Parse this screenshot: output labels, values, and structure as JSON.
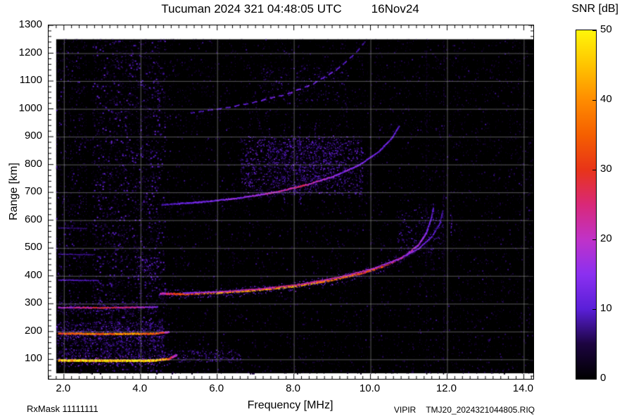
{
  "header": {
    "title": "Tucuman 2024 321 04:48:05 UTC",
    "date": "16Nov24"
  },
  "footer": {
    "rxmask": "RxMask 11111111",
    "instrument": "VIPIR",
    "filename": "TMJ20_2024321044805.RIQ"
  },
  "chart_data": {
    "type": "heatmap",
    "subtype": "ionogram",
    "title": "Tucuman 2024 321 04:48:05 UTC",
    "date_label": "16Nov24",
    "xlabel": "Frequency [MHz]",
    "ylabel": "Range [km]",
    "xlim": [
      1.6,
      14.25
    ],
    "ylim": [
      30,
      1300
    ],
    "x_ticks": [
      2.0,
      4.0,
      6.0,
      8.0,
      10.0,
      12.0,
      14.0
    ],
    "x_tick_labels": [
      "2.0",
      "4.0",
      "6.0",
      "8.0",
      "10.0",
      "12.0",
      "14.0"
    ],
    "y_ticks": [
      100,
      200,
      300,
      400,
      500,
      600,
      700,
      800,
      900,
      1000,
      1100,
      1200,
      1300
    ],
    "x_minor_step": 0.2,
    "y_minor_step": 20,
    "grid": true,
    "grid_color": "rgba(205,205,205,0.42)",
    "colorbar": {
      "label": "SNR [dB]",
      "min": 0,
      "max": 50,
      "ticks": [
        0,
        10,
        20,
        30,
        40,
        50
      ]
    },
    "colormap": [
      [
        0.0,
        "#000000"
      ],
      [
        0.1,
        "#1c0440"
      ],
      [
        0.2,
        "#5a1fd8"
      ],
      [
        0.3,
        "#8b30f0"
      ],
      [
        0.4,
        "#c032c8"
      ],
      [
        0.5,
        "#d92878"
      ],
      [
        0.6,
        "#e83418"
      ],
      [
        0.7,
        "#f55f00"
      ],
      [
        0.8,
        "#ff8c00"
      ],
      [
        0.9,
        "#ffc400"
      ],
      [
        1.0,
        "#fff60a"
      ]
    ],
    "data_region": {
      "freq": [
        1.8,
        14.25
      ],
      "range": [
        50,
        1250
      ]
    },
    "noise": {
      "seed": 1337,
      "cell": 2,
      "layers": [
        {
          "name": "background",
          "freq": [
            1.8,
            14.25
          ],
          "range": [
            50,
            1250
          ],
          "density": 0.2,
          "max_snr": 6
        },
        {
          "name": "noise-column",
          "freq": [
            2.75,
            4.65
          ],
          "range": [
            60,
            1250
          ],
          "density": 0.38,
          "max_snr": 13
        },
        {
          "name": "low-freq",
          "freq": [
            1.8,
            2.6
          ],
          "range": [
            60,
            1250
          ],
          "density": 0.25,
          "max_snr": 9
        },
        {
          "name": "mid-sparse",
          "freq": [
            4.65,
            14.2
          ],
          "range": [
            50,
            1250
          ],
          "density": 0.05,
          "max_snr": 8
        }
      ]
    },
    "clouds": [
      {
        "name": "es-band",
        "freq": [
          1.8,
          4.6
        ],
        "range": [
          148,
          238
        ],
        "count": 1500,
        "max_snr": 13
      },
      {
        "name": "e-fuzz",
        "freq": [
          1.8,
          4.9
        ],
        "range": [
          100,
          142
        ],
        "count": 700,
        "max_snr": 12
      },
      {
        "name": "e-tail-blobs",
        "freq": [
          4.95,
          6.6
        ],
        "range": [
          92,
          135
        ],
        "count": 300,
        "max_snr": 13
      },
      {
        "name": "es3-fuzz",
        "freq": [
          1.8,
          4.4
        ],
        "range": [
          262,
          308
        ],
        "count": 350,
        "max_snr": 10
      },
      {
        "name": "f-start-dots",
        "freq": [
          3.85,
          4.45
        ],
        "range": [
          390,
          470
        ],
        "count": 160,
        "max_snr": 15
      },
      {
        "name": "second-hop-cloud",
        "freq": [
          6.6,
          9.8
        ],
        "range": [
          690,
          905
        ],
        "count": 2200,
        "max_snr": 15
      },
      {
        "name": "second-hop-upper",
        "freq": [
          7.3,
          9.2
        ],
        "range": [
          740,
          880
        ],
        "count": 900,
        "max_snr": 13
      },
      {
        "name": "cusp-cloud",
        "freq": [
          10.7,
          11.9
        ],
        "range": [
          470,
          640
        ],
        "count": 420,
        "max_snr": 11
      },
      {
        "name": "third-hop-cloud",
        "freq": [
          7.1,
          9.4
        ],
        "range": [
          1030,
          1160
        ],
        "count": 420,
        "max_snr": 10
      }
    ],
    "rfi_stripes": [
      {
        "freq": 7.35,
        "range": [
          660,
          930
        ],
        "snr": 9,
        "width": 2
      },
      {
        "freq": 7.75,
        "range": [
          660,
          935
        ],
        "snr": 10,
        "width": 2
      },
      {
        "freq": 8.15,
        "range": [
          660,
          945
        ],
        "snr": 11,
        "width": 2.5
      },
      {
        "freq": 8.55,
        "range": [
          670,
          950
        ],
        "snr": 9,
        "width": 2
      },
      {
        "freq": 11.45,
        "range": [
          50,
          1250
        ],
        "snr": 5,
        "width": 1.5
      },
      {
        "freq": 11.9,
        "range": [
          50,
          1250
        ],
        "snr": 6,
        "width": 1.5
      },
      {
        "freq": 12.1,
        "range": [
          545,
          625
        ],
        "snr": 14,
        "width": 2.5
      },
      {
        "freq": 11.62,
        "range": [
          600,
          660
        ],
        "snr": 10,
        "width": 2
      }
    ],
    "traces": [
      {
        "name": "E-echo-1",
        "width": 3,
        "points": [
          [
            1.85,
            96
          ],
          [
            3.2,
            95
          ],
          [
            4.3,
            95
          ],
          [
            4.72,
            101
          ],
          [
            4.95,
            117
          ]
        ],
        "snr_points": [
          [
            1.85,
            44
          ],
          [
            2.5,
            47
          ],
          [
            4.2,
            48
          ],
          [
            4.6,
            40
          ],
          [
            4.8,
            26
          ],
          [
            4.95,
            15
          ]
        ]
      },
      {
        "name": "E-echo-2",
        "width": 2.4,
        "points": [
          [
            1.85,
            193
          ],
          [
            3.0,
            191
          ],
          [
            4.4,
            192
          ],
          [
            4.75,
            199
          ]
        ],
        "snr_points": [
          [
            1.85,
            30
          ],
          [
            2.6,
            36
          ],
          [
            3.8,
            37
          ],
          [
            4.5,
            30
          ],
          [
            4.75,
            16
          ]
        ]
      },
      {
        "name": "E-echo-3",
        "width": 1.8,
        "points": [
          [
            1.85,
            286
          ],
          [
            3.0,
            285
          ],
          [
            4.45,
            288
          ]
        ],
        "snr_points": [
          [
            1.85,
            18
          ],
          [
            2.8,
            26
          ],
          [
            3.8,
            22
          ],
          [
            4.45,
            13
          ]
        ]
      },
      {
        "name": "E-echo-4",
        "width": 1.4,
        "points": [
          [
            1.85,
            385
          ],
          [
            2.9,
            383
          ]
        ],
        "snr_points": [
          [
            1.85,
            11
          ],
          [
            2.9,
            8
          ]
        ]
      },
      {
        "name": "E-echo-5",
        "width": 1.3,
        "points": [
          [
            1.85,
            478
          ],
          [
            2.8,
            476
          ]
        ],
        "snr_points": [
          [
            1.85,
            8
          ],
          [
            2.8,
            7
          ]
        ]
      },
      {
        "name": "E-echo-6",
        "width": 1.2,
        "points": [
          [
            1.85,
            572
          ],
          [
            2.6,
            570
          ]
        ],
        "snr_points": [
          [
            1.85,
            7
          ],
          [
            2.6,
            6
          ]
        ]
      },
      {
        "name": "F-trace-O",
        "width": 2.6,
        "points": [
          [
            4.5,
            336
          ],
          [
            5.2,
            334
          ],
          [
            6.0,
            339
          ],
          [
            7.0,
            348
          ],
          [
            8.0,
            362
          ],
          [
            9.0,
            385
          ],
          [
            9.8,
            410
          ],
          [
            10.4,
            438
          ],
          [
            10.9,
            472
          ],
          [
            11.25,
            512
          ],
          [
            11.45,
            555
          ],
          [
            11.58,
            608
          ],
          [
            11.63,
            645
          ]
        ],
        "snr_points": [
          [
            4.5,
            18
          ],
          [
            4.9,
            30
          ],
          [
            6.0,
            38
          ],
          [
            7.0,
            40
          ],
          [
            8.0,
            42
          ],
          [
            8.8,
            39
          ],
          [
            9.5,
            34
          ],
          [
            10.2,
            30
          ],
          [
            10.8,
            24
          ],
          [
            11.2,
            17
          ],
          [
            11.45,
            13
          ],
          [
            11.63,
            10
          ]
        ]
      },
      {
        "name": "F-trace-X",
        "width": 1.7,
        "points": [
          [
            5.1,
            338
          ],
          [
            6.2,
            344
          ],
          [
            7.2,
            354
          ],
          [
            8.2,
            370
          ],
          [
            9.2,
            396
          ],
          [
            10.0,
            424
          ],
          [
            10.7,
            458
          ],
          [
            11.25,
            498
          ],
          [
            11.6,
            542
          ],
          [
            11.8,
            588
          ],
          [
            11.88,
            635
          ]
        ],
        "snr_points": [
          [
            5.1,
            14
          ],
          [
            6.5,
            20
          ],
          [
            8.0,
            23
          ],
          [
            9.2,
            21
          ],
          [
            10.0,
            19
          ],
          [
            10.7,
            16
          ],
          [
            11.3,
            13
          ],
          [
            11.88,
            9
          ]
        ]
      },
      {
        "name": "F-second-hop",
        "width": 2,
        "points": [
          [
            4.55,
            655
          ],
          [
            5.5,
            664
          ],
          [
            6.5,
            678
          ],
          [
            7.5,
            700
          ],
          [
            8.3,
            726
          ],
          [
            9.0,
            756
          ],
          [
            9.7,
            798
          ],
          [
            10.2,
            845
          ],
          [
            10.55,
            895
          ],
          [
            10.75,
            940
          ]
        ],
        "snr_points": [
          [
            4.55,
            9
          ],
          [
            5.5,
            12
          ],
          [
            6.5,
            14
          ],
          [
            7.5,
            19
          ],
          [
            8.1,
            24
          ],
          [
            8.6,
            19
          ],
          [
            9.2,
            15
          ],
          [
            9.9,
            13
          ],
          [
            10.75,
            10
          ]
        ]
      },
      {
        "name": "F-third-hop",
        "width": 1.6,
        "dash": [
          7,
          6
        ],
        "points": [
          [
            5.3,
            985
          ],
          [
            6.2,
            1003
          ],
          [
            7.0,
            1025
          ],
          [
            7.8,
            1052
          ],
          [
            8.5,
            1090
          ],
          [
            9.1,
            1140
          ],
          [
            9.6,
            1200
          ],
          [
            9.9,
            1250
          ]
        ],
        "snr_points": [
          [
            5.3,
            8
          ],
          [
            6.5,
            11
          ],
          [
            7.6,
            13
          ],
          [
            8.4,
            12
          ],
          [
            9.2,
            11
          ],
          [
            9.9,
            8
          ]
        ]
      }
    ]
  }
}
